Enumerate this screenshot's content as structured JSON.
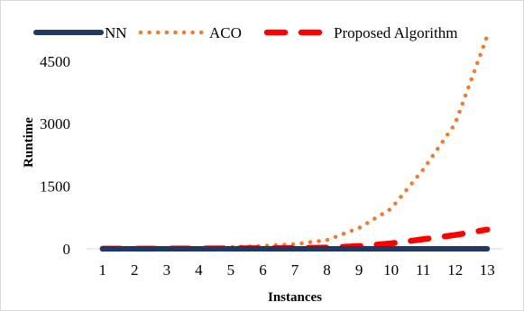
{
  "chart_data": {
    "type": "line",
    "title": "",
    "xlabel": "Instances",
    "ylabel": "Runtime",
    "categories": [
      "1",
      "2",
      "3",
      "4",
      "5",
      "6",
      "7",
      "8",
      "9",
      "10",
      "11",
      "12",
      "13"
    ],
    "ylim": [
      0,
      5100
    ],
    "yticks": [
      0,
      1500,
      3000,
      4500
    ],
    "yticks_labels": [
      "0",
      "1500",
      "3000",
      "4500"
    ],
    "grid": false,
    "legend_position": "top",
    "series": [
      {
        "name": "NN",
        "color": "#1f3864",
        "style": "solid",
        "values": [
          1,
          1,
          1,
          1,
          1,
          1,
          1,
          1,
          1,
          1,
          1,
          1,
          1
        ]
      },
      {
        "name": "ACO",
        "color": "#ed7d31",
        "style": "dotted",
        "values": [
          3,
          5,
          10,
          20,
          40,
          70,
          110,
          210,
          500,
          960,
          1900,
          3000,
          5100
        ]
      },
      {
        "name": "Proposed Algorithm",
        "color": "#ff0000",
        "style": "dashed",
        "values": [
          2,
          3,
          4,
          6,
          8,
          12,
          18,
          30,
          65,
          130,
          230,
          330,
          460
        ]
      }
    ]
  }
}
